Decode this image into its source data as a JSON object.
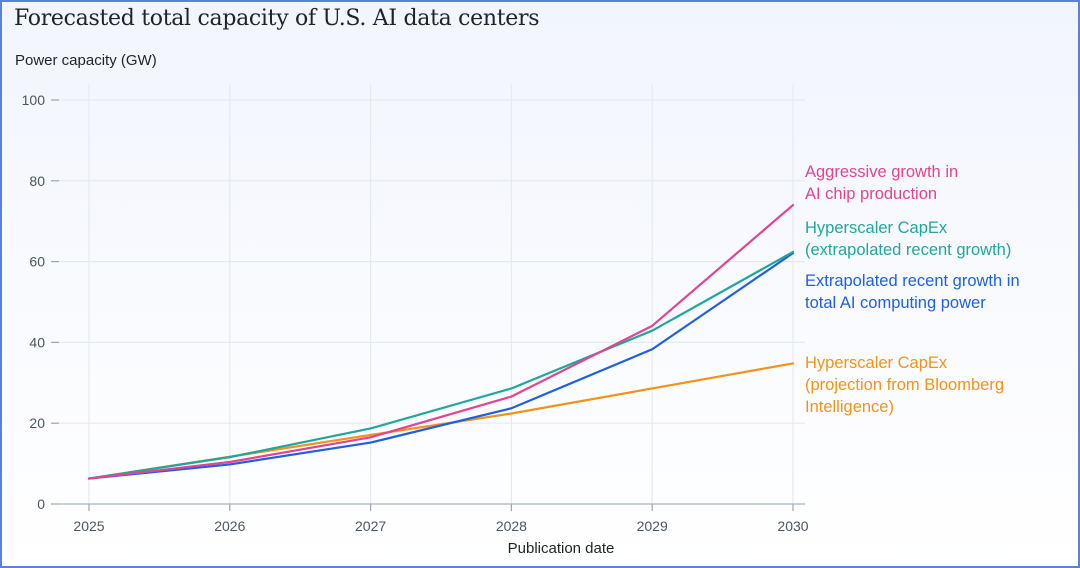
{
  "chart_data": {
    "type": "line",
    "title": "Forecasted total capacity of U.S. AI data centers",
    "ylabel": "Power capacity (GW)",
    "xlabel": "Publication date",
    "x": [
      2025,
      2026,
      2027,
      2028,
      2029,
      2030
    ],
    "xticks": [
      "2025",
      "2026",
      "2027",
      "2028",
      "2029",
      "2030"
    ],
    "yticks": [
      "0",
      "20",
      "40",
      "60",
      "80",
      "100"
    ],
    "ytick_values": [
      0,
      20,
      40,
      60,
      80,
      100
    ],
    "ylim": [
      0,
      100
    ],
    "xlim": [
      2025,
      2030
    ],
    "grid": true,
    "legend": "direct-labels-right",
    "series": [
      {
        "name": "Aggressive growth in AI chip production",
        "label_lines": [
          "Aggressive growth in",
          "AI chip production"
        ],
        "color": "#e0458f",
        "values": [
          6.3,
          10.4,
          16.5,
          26.6,
          44.1,
          74.0
        ]
      },
      {
        "name": "Hyperscaler CapEx (extrapolated recent growth)",
        "label_lines": [
          "Hyperscaler CapEx",
          "(extrapolated recent growth)"
        ],
        "color": "#1fa79c",
        "values": [
          6.3,
          11.6,
          18.7,
          28.6,
          42.9,
          62.4
        ]
      },
      {
        "name": "Extrapolated recent growth in total AI computing power",
        "label_lines": [
          "Extrapolated recent growth in",
          "total AI computing power"
        ],
        "color": "#1f5fe0",
        "values": [
          6.3,
          9.8,
          15.2,
          23.7,
          38.3,
          62.1
        ]
      },
      {
        "name": "Hyperscaler CapEx (projection from Bloomberg Intelligence)",
        "label_lines": [
          "Hyperscaler CapEx",
          "(projection from Bloomberg",
          "Intelligence)"
        ],
        "color": "#f0931b",
        "values": [
          6.3,
          11.7,
          17.1,
          22.4,
          28.6,
          34.8
        ]
      }
    ]
  }
}
